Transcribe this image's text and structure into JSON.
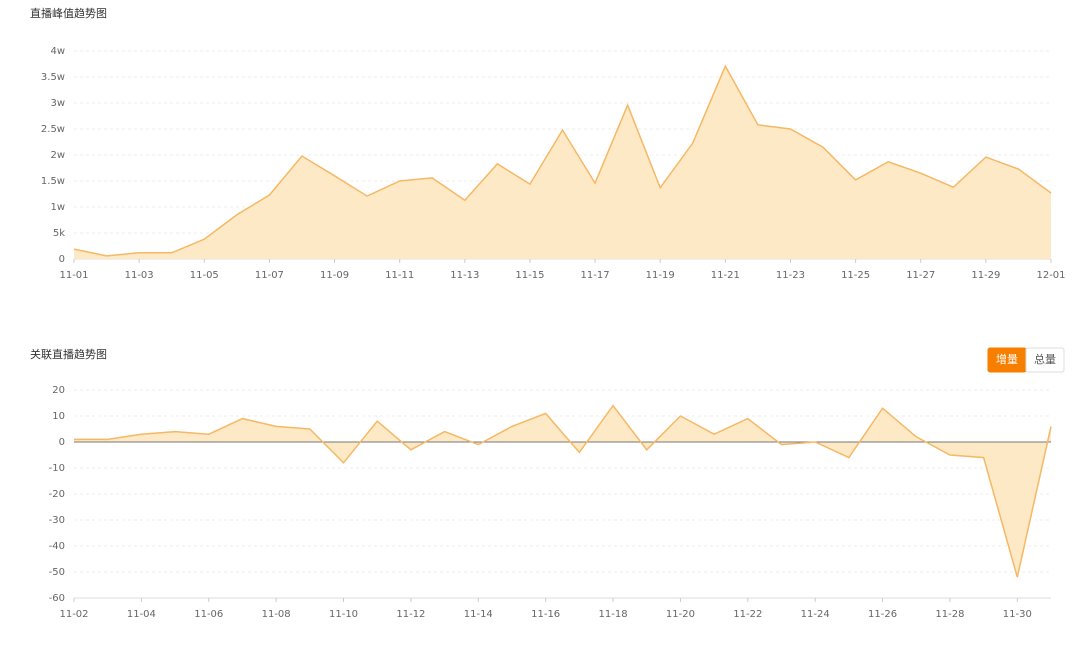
{
  "chart_data": [
    {
      "type": "area",
      "title": "直播峰值趋势图",
      "categories": [
        "11-01",
        null,
        "11-03",
        null,
        "11-05",
        null,
        "11-07",
        null,
        "11-09",
        null,
        "11-11",
        null,
        "11-13",
        null,
        "11-15",
        null,
        "11-17",
        null,
        "11-19",
        null,
        "11-21",
        null,
        "11-23",
        null,
        "11-25",
        null,
        "11-27",
        null,
        "11-29",
        null,
        "12-01"
      ],
      "values": [
        1900,
        600,
        1200,
        1200,
        3800,
        8500,
        12300,
        19800,
        16000,
        12100,
        15000,
        15600,
        11300,
        18300,
        14400,
        24800,
        14600,
        29600,
        13700,
        22300,
        37100,
        25800,
        25000,
        21500,
        15200,
        18700,
        16500,
        13800,
        19600,
        17300,
        12700
      ],
      "color": "#f5b865",
      "fill": "#fde9c6",
      "ylim": [
        0,
        40000
      ],
      "yticks": [
        0,
        {
          "value": 5000,
          "label": "5k"
        },
        {
          "value": 10000,
          "label": "1w"
        },
        {
          "value": 15000,
          "label": "1.5w"
        },
        {
          "value": 20000,
          "label": "2w"
        },
        {
          "value": 25000,
          "label": "2.5w"
        },
        {
          "value": 30000,
          "label": "3w"
        },
        {
          "value": 35000,
          "label": "3.5w"
        },
        {
          "value": 40000,
          "label": "4w"
        }
      ],
      "grid": true
    },
    {
      "type": "area",
      "title": "关联直播趋势图",
      "buttons": [
        "增量",
        "总量"
      ],
      "active_button": 0,
      "categories": [
        "11-02",
        null,
        "11-04",
        null,
        "11-06",
        null,
        "11-08",
        null,
        "11-10",
        null,
        "11-12",
        null,
        "11-14",
        null,
        "11-16",
        null,
        "11-18",
        null,
        "11-20",
        null,
        "11-22",
        null,
        "11-24",
        null,
        "11-26",
        null,
        "11-28",
        null,
        "11-30",
        null
      ],
      "values": [
        1,
        1,
        3,
        4,
        3,
        9,
        6,
        5,
        -8,
        8,
        -3,
        4,
        -1,
        6,
        11,
        -4,
        14,
        -3,
        10,
        3,
        9,
        -1,
        0,
        -6,
        13,
        2,
        -5,
        -6,
        -52,
        6
      ],
      "color": "#f5b865",
      "fill": "#fde9c6",
      "ylim": [
        -60,
        20
      ],
      "yticks": [
        -60,
        -50,
        -40,
        -30,
        -20,
        -10,
        0,
        10,
        20
      ],
      "grid": true
    }
  ]
}
